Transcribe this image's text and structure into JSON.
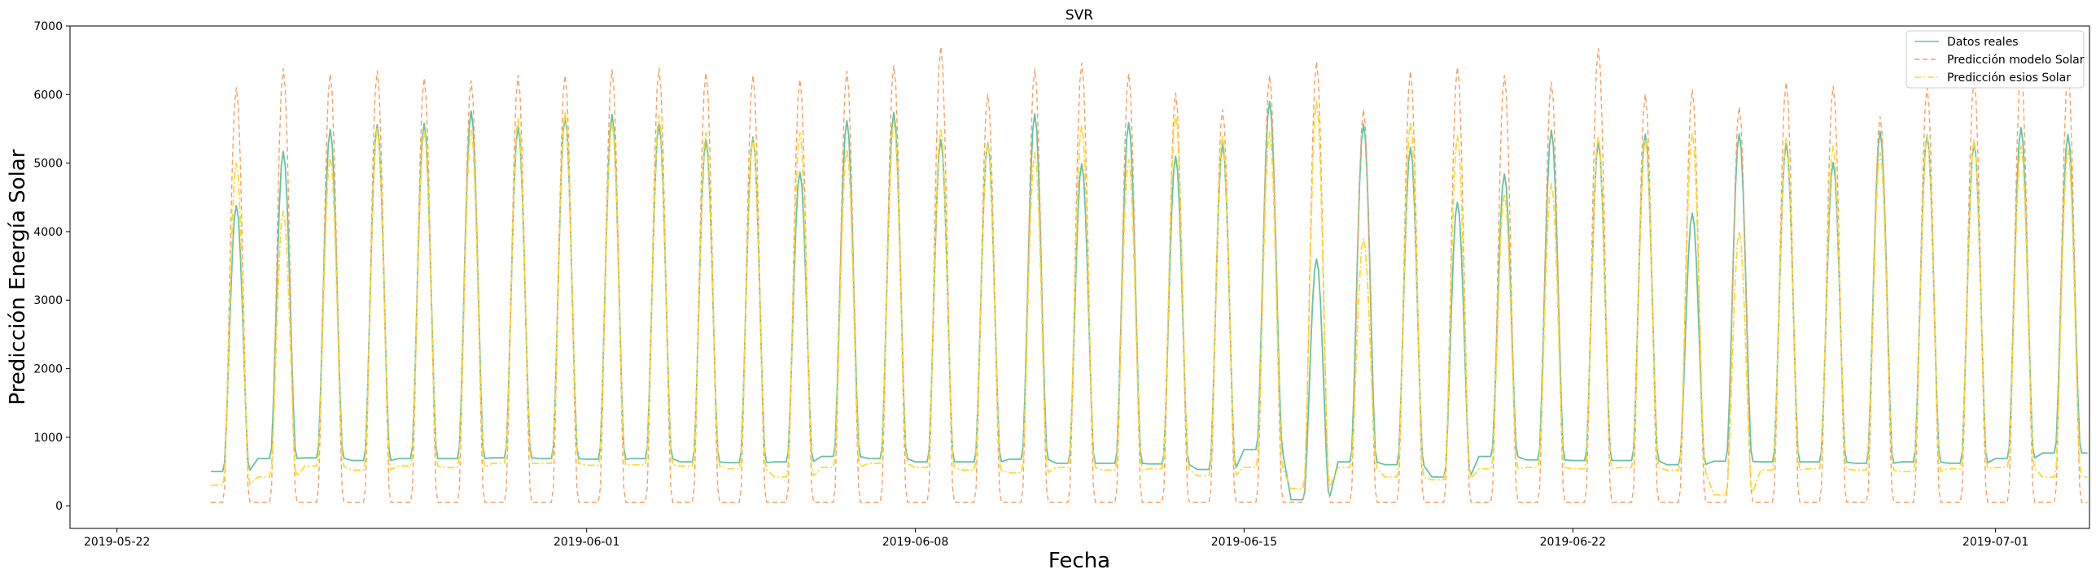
{
  "chart_data": {
    "type": "line",
    "title": "SVR",
    "xlabel": "Fecha",
    "ylabel": "Predicción Energía Solar",
    "x_start": "2019-05-24",
    "x_end": "2019-07-02",
    "xlim": [
      "2019-05-21",
      "2019-07-03"
    ],
    "ylim": [
      -330,
      7000
    ],
    "x_ticks": [
      "2019-05-22",
      "2019-06-01",
      "2019-06-08",
      "2019-06-15",
      "2019-06-22",
      "2019-07-01"
    ],
    "y_ticks": [
      0,
      1000,
      2000,
      3000,
      4000,
      5000,
      6000,
      7000
    ],
    "legend_position": "top-right",
    "grid": false,
    "colors": {
      "datos_reales": "#66c2a5",
      "modelo": "#f4a261",
      "esios": "#ffd92f"
    },
    "series": [
      {
        "name": "Datos reales",
        "style": "solid",
        "daily_peaks": [
          4380,
          5170,
          5490,
          5560,
          5580,
          5760,
          5530,
          5680,
          5710,
          5570,
          5340,
          5380,
          4870,
          5620,
          5740,
          5340,
          5300,
          5720,
          4990,
          5590,
          5100,
          5280,
          5900,
          3600,
          5570,
          5230,
          4430,
          4840,
          5480,
          5310,
          5420,
          4270,
          5430,
          5290,
          5010,
          5460,
          5410,
          5300,
          5520,
          5420
        ],
        "daily_lows": [
          500,
          690,
          700,
          660,
          690,
          690,
          700,
          690,
          680,
          690,
          640,
          630,
          640,
          720,
          690,
          640,
          640,
          680,
          620,
          620,
          610,
          530,
          820,
          90,
          640,
          600,
          420,
          720,
          670,
          660,
          660,
          600,
          650,
          640,
          640,
          620,
          640,
          620,
          690,
          770
        ]
      },
      {
        "name": "Predicción modelo Solar",
        "style": "dashed",
        "daily_peaks": [
          6100,
          6380,
          6300,
          6340,
          6240,
          6200,
          6280,
          6280,
          6360,
          6380,
          6320,
          6280,
          6220,
          6340,
          6420,
          6700,
          6000,
          6370,
          6460,
          6300,
          6020,
          5780,
          6280,
          6480,
          5780,
          6340,
          6400,
          6280,
          6180,
          6670,
          6000,
          6070,
          5820,
          6180,
          6120,
          5680,
          6100,
          6200,
          6370,
          6300
        ],
        "daily_lows": [
          50,
          50,
          50,
          50,
          50,
          50,
          50,
          50,
          50,
          50,
          50,
          50,
          50,
          50,
          50,
          50,
          50,
          50,
          50,
          50,
          50,
          50,
          50,
          50,
          50,
          50,
          50,
          50,
          50,
          50,
          50,
          50,
          50,
          50,
          50,
          50,
          50,
          50,
          50,
          50
        ]
      },
      {
        "name": "Predicción esios Solar",
        "style": "dashdot",
        "daily_peaks": [
          5000,
          4300,
          5100,
          5500,
          5480,
          5480,
          5650,
          5750,
          5600,
          5700,
          5450,
          5350,
          5450,
          5200,
          5600,
          5500,
          5300,
          5150,
          5550,
          5050,
          5700,
          5400,
          5450,
          5900,
          3900,
          5600,
          5400,
          4550,
          4700,
          5400,
          5350,
          5450,
          4000,
          5380,
          5250,
          5150,
          5400,
          5350,
          5250,
          5200
        ],
        "daily_lows": [
          300,
          420,
          580,
          520,
          580,
          560,
          620,
          620,
          590,
          600,
          580,
          540,
          420,
          560,
          620,
          560,
          520,
          480,
          560,
          520,
          540,
          440,
          560,
          250,
          560,
          420,
          380,
          540,
          560,
          540,
          560,
          520,
          160,
          520,
          540,
          520,
          500,
          540,
          560,
          420
        ]
      }
    ]
  }
}
